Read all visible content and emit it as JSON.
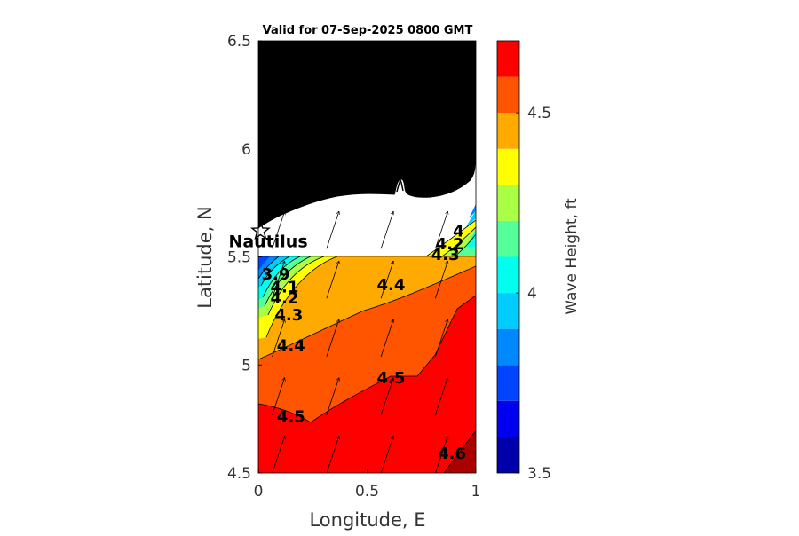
{
  "chart_data": {
    "type": "heatmap",
    "subtype": "filled-contour",
    "title": "Valid for 07-Sep-2025 0800 GMT",
    "xlabel": "Longitude, E",
    "ylabel": "Latitude, N",
    "xlim": [
      0,
      1
    ],
    "ylim": [
      4.5,
      6.5
    ],
    "xticks": [
      "0",
      "0.5",
      "1"
    ],
    "yticks": [
      "4.5",
      "5",
      "5.5",
      "6",
      "6.5"
    ],
    "data_extent_lat": [
      4.5,
      5.5
    ],
    "colorbar": {
      "label": "Wave Height, ft",
      "range": [
        3.5,
        4.7
      ],
      "levels": [
        3.5,
        3.6,
        3.7,
        3.8,
        3.9,
        4.0,
        4.1,
        4.2,
        4.3,
        4.4,
        4.5,
        4.6,
        4.7
      ],
      "colors": [
        "#0000aa",
        "#0000ee",
        "#0044ff",
        "#0088ff",
        "#00ccff",
        "#00ffee",
        "#55ff99",
        "#aaff44",
        "#ffff00",
        "#ffaa00",
        "#ff5500",
        "#ff0000",
        "#aa0000"
      ],
      "ticks": [
        "3.5",
        "4",
        "4.5"
      ]
    },
    "contour_labels": [
      {
        "text": "3.9",
        "lon": 0.08,
        "lat": 5.42
      },
      {
        "text": "4.1",
        "lon": 0.12,
        "lat": 5.36
      },
      {
        "text": "4.2",
        "lon": 0.12,
        "lat": 5.31
      },
      {
        "text": "4.3",
        "lon": 0.14,
        "lat": 5.23
      },
      {
        "text": "4.4",
        "lon": 0.15,
        "lat": 5.09
      },
      {
        "text": "4.4",
        "lon": 0.61,
        "lat": 5.37
      },
      {
        "text": "4.5",
        "lon": 0.15,
        "lat": 4.76
      },
      {
        "text": "4.5",
        "lon": 0.61,
        "lat": 4.94
      },
      {
        "text": "4",
        "lon": 0.92,
        "lat": 5.62
      },
      {
        "text": "4.2",
        "lon": 0.88,
        "lat": 5.56
      },
      {
        "text": "4.3",
        "lon": 0.86,
        "lat": 5.51
      },
      {
        "text": "4.6",
        "lon": 0.89,
        "lat": 4.59
      }
    ],
    "station": {
      "name": "Nautilus",
      "lon": 0.01,
      "lat": 5.62
    },
    "wave_direction_vectors": {
      "lons": [
        0.08,
        0.33,
        0.58,
        0.83
      ],
      "lats": [
        4.58,
        4.85,
        5.12,
        5.39,
        5.62
      ],
      "direction": "north-northeast"
    }
  }
}
